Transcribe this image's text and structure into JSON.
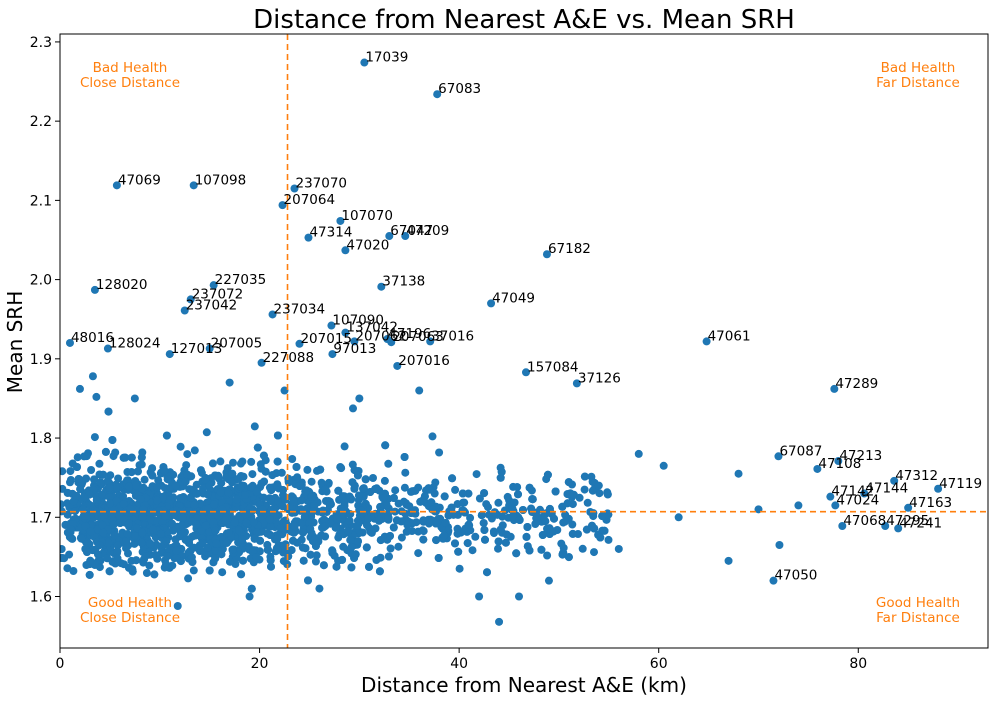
{
  "chart_data": {
    "type": "scatter",
    "title": "Distance from Nearest A&E vs. Mean SRH",
    "xlabel": "Distance from Nearest A&E (km)",
    "ylabel": "Mean SRH",
    "xlim": [
      0,
      93
    ],
    "ylim": [
      1.535,
      2.31
    ],
    "xticks": [
      0,
      20,
      40,
      60,
      80
    ],
    "yticks": [
      1.6,
      1.7,
      1.8,
      1.9,
      2.0,
      2.1,
      2.2,
      2.3
    ],
    "grid": false,
    "marker_color": "#1f77b4",
    "reference_color": "#ff7f0e",
    "reference_lines": {
      "x": 22.8,
      "y": 1.707
    },
    "quadrant_labels": [
      {
        "position": "top-left",
        "lines": [
          "Bad Health",
          "Close Distance"
        ]
      },
      {
        "position": "top-right",
        "lines": [
          "Bad Health",
          "Far Distance"
        ]
      },
      {
        "position": "bottom-left",
        "lines": [
          "Good Health",
          "Close Distance"
        ]
      },
      {
        "position": "bottom-right",
        "lines": [
          "Good Health",
          "Far Distance"
        ]
      }
    ],
    "labeled_points": [
      {
        "label": "17039",
        "x": 30.5,
        "y": 2.274
      },
      {
        "label": "67083",
        "x": 37.8,
        "y": 2.234
      },
      {
        "label": "47069",
        "x": 5.7,
        "y": 2.119
      },
      {
        "label": "107098",
        "x": 13.4,
        "y": 2.119
      },
      {
        "label": "237070",
        "x": 23.5,
        "y": 2.115
      },
      {
        "label": "207064",
        "x": 22.3,
        "y": 2.094
      },
      {
        "label": "107070",
        "x": 28.1,
        "y": 2.074
      },
      {
        "label": "47314",
        "x": 24.9,
        "y": 2.053
      },
      {
        "label": "67047",
        "x": 33.0,
        "y": 2.055
      },
      {
        "label": "47209",
        "x": 34.6,
        "y": 2.055
      },
      {
        "label": "47020",
        "x": 28.6,
        "y": 2.037
      },
      {
        "label": "67182",
        "x": 48.8,
        "y": 2.032
      },
      {
        "label": "128020",
        "x": 3.5,
        "y": 1.987
      },
      {
        "label": "227035",
        "x": 15.4,
        "y": 1.993
      },
      {
        "label": "37138",
        "x": 32.2,
        "y": 1.991
      },
      {
        "label": "237072",
        "x": 13.1,
        "y": 1.975
      },
      {
        "label": "47049",
        "x": 43.2,
        "y": 1.97
      },
      {
        "label": "237042",
        "x": 12.5,
        "y": 1.961
      },
      {
        "label": "237034",
        "x": 21.3,
        "y": 1.956
      },
      {
        "label": "107090",
        "x": 27.2,
        "y": 1.942
      },
      {
        "label": "137042",
        "x": 28.6,
        "y": 1.933
      },
      {
        "label": "47196",
        "x": 32.8,
        "y": 1.925
      },
      {
        "label": "37016",
        "x": 37.1,
        "y": 1.922
      },
      {
        "label": "207015",
        "x": 24.0,
        "y": 1.919
      },
      {
        "label": "207062",
        "x": 29.5,
        "y": 1.922
      },
      {
        "label": "207063",
        "x": 33.2,
        "y": 1.921
      },
      {
        "label": "47061",
        "x": 64.8,
        "y": 1.922
      },
      {
        "label": "48016",
        "x": 1.0,
        "y": 1.92
      },
      {
        "label": "128024",
        "x": 4.8,
        "y": 1.913
      },
      {
        "label": "207005",
        "x": 15.0,
        "y": 1.913
      },
      {
        "label": "127013",
        "x": 11.0,
        "y": 1.906
      },
      {
        "label": "97013",
        "x": 27.3,
        "y": 1.906
      },
      {
        "label": "227088",
        "x": 20.2,
        "y": 1.895
      },
      {
        "label": "207016",
        "x": 33.8,
        "y": 1.891
      },
      {
        "label": "157084",
        "x": 46.7,
        "y": 1.883
      },
      {
        "label": "37126",
        "x": 51.8,
        "y": 1.869
      },
      {
        "label": "47289",
        "x": 77.6,
        "y": 1.862
      },
      {
        "label": "67087",
        "x": 72.0,
        "y": 1.777
      },
      {
        "label": "47213",
        "x": 78.0,
        "y": 1.771
      },
      {
        "label": "47108",
        "x": 75.9,
        "y": 1.761
      },
      {
        "label": "47312",
        "x": 83.6,
        "y": 1.746
      },
      {
        "label": "47119",
        "x": 88.0,
        "y": 1.736
      },
      {
        "label": "47144",
        "x": 80.6,
        "y": 1.73
      },
      {
        "label": "47142",
        "x": 77.2,
        "y": 1.726
      },
      {
        "label": "47024",
        "x": 77.7,
        "y": 1.715
      },
      {
        "label": "47163",
        "x": 85.0,
        "y": 1.712
      },
      {
        "label": "47068",
        "x": 78.4,
        "y": 1.689
      },
      {
        "label": "47295",
        "x": 82.7,
        "y": 1.689
      },
      {
        "label": "47241",
        "x": 84.0,
        "y": 1.686
      },
      {
        "label": "47050",
        "x": 71.5,
        "y": 1.62
      }
    ],
    "unlabeled_points": [
      {
        "x": 11.8,
        "y": 1.588
      },
      {
        "x": 44.0,
        "y": 1.568
      },
      {
        "x": 72.1,
        "y": 1.665
      },
      {
        "x": 67.0,
        "y": 1.645
      },
      {
        "x": 70.0,
        "y": 1.71
      },
      {
        "x": 74.0,
        "y": 1.715
      },
      {
        "x": 68.0,
        "y": 1.755
      },
      {
        "x": 62.0,
        "y": 1.7
      },
      {
        "x": 60.5,
        "y": 1.765
      },
      {
        "x": 58.0,
        "y": 1.78
      },
      {
        "x": 54.0,
        "y": 1.74
      },
      {
        "x": 56.0,
        "y": 1.66
      },
      {
        "x": 49.0,
        "y": 1.62
      },
      {
        "x": 46.0,
        "y": 1.6
      },
      {
        "x": 3.3,
        "y": 1.878
      },
      {
        "x": 2.0,
        "y": 1.862
      },
      {
        "x": 7.5,
        "y": 1.85
      },
      {
        "x": 17.0,
        "y": 1.87
      },
      {
        "x": 22.5,
        "y": 1.86
      },
      {
        "x": 19.0,
        "y": 1.6
      },
      {
        "x": 26.0,
        "y": 1.61
      },
      {
        "x": 42.0,
        "y": 1.6
      },
      {
        "x": 36.0,
        "y": 1.86
      },
      {
        "x": 30.0,
        "y": 1.85
      }
    ],
    "dense_cloud": {
      "description_values": "approx 3000 unlabeled points",
      "x_range": [
        0,
        75
      ],
      "y_center": 1.7,
      "y_spread": 0.03
    }
  }
}
